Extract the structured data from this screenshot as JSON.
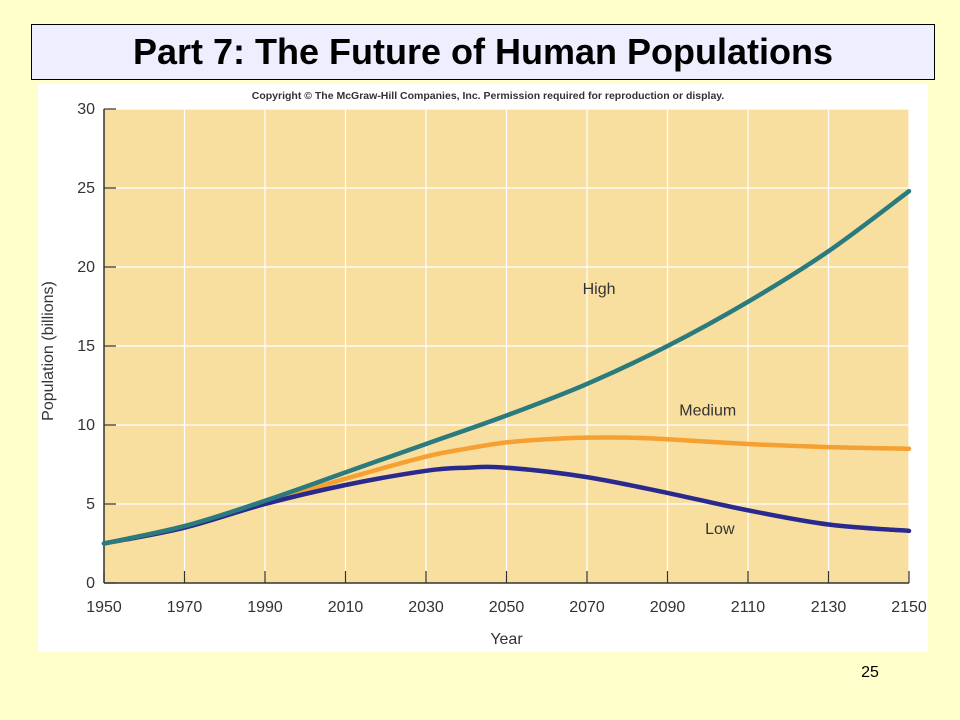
{
  "slide": {
    "title": "Part 7: The Future of Human Populations",
    "page_number": "25",
    "background_color": "#ffffcc",
    "title_box_color": "#eeeeff"
  },
  "chart_data": {
    "type": "line",
    "copyright": "Copyright © The McGraw-Hill Companies, Inc. Permission required for reproduction or display.",
    "xlabel": "Year",
    "ylabel": "Population (billions)",
    "xlim": [
      1950,
      2150
    ],
    "ylim": [
      0,
      30
    ],
    "xticks": [
      1950,
      1970,
      1990,
      2010,
      2030,
      2050,
      2070,
      2090,
      2110,
      2130,
      2150
    ],
    "yticks": [
      0,
      5,
      10,
      15,
      20,
      25,
      30
    ],
    "grid": true,
    "plot_background": "#f8dfa0",
    "grid_color": "#ffffff",
    "series": [
      {
        "name": "High",
        "color": "#2a7a7e",
        "x": [
          1950,
          1970,
          1990,
          2010,
          2030,
          2050,
          2070,
          2090,
          2110,
          2130,
          2150
        ],
        "values": [
          2.5,
          3.6,
          5.2,
          7.0,
          8.8,
          10.6,
          12.6,
          15.0,
          17.8,
          21.0,
          24.8
        ]
      },
      {
        "name": "Medium",
        "color": "#f5a030",
        "x": [
          1950,
          1970,
          1990,
          2010,
          2030,
          2040,
          2050,
          2060,
          2070,
          2080,
          2090,
          2110,
          2130,
          2150
        ],
        "values": [
          2.5,
          3.6,
          5.1,
          6.6,
          8.0,
          8.5,
          8.9,
          9.1,
          9.2,
          9.2,
          9.1,
          8.8,
          8.6,
          8.5
        ]
      },
      {
        "name": "Low",
        "color": "#2a2a8e",
        "x": [
          1950,
          1970,
          1990,
          2010,
          2030,
          2040,
          2050,
          2070,
          2090,
          2110,
          2130,
          2150
        ],
        "values": [
          2.5,
          3.5,
          5.0,
          6.2,
          7.1,
          7.3,
          7.3,
          6.7,
          5.7,
          4.6,
          3.7,
          3.3
        ]
      }
    ],
    "annotations": [
      {
        "text": "High",
        "series": "High",
        "x": 2073,
        "y": 18.3
      },
      {
        "text": "Medium",
        "series": "Medium",
        "x": 2100,
        "y": 10.6
      },
      {
        "text": "Low",
        "series": "Low",
        "x": 2103,
        "y": 3.1
      }
    ]
  }
}
